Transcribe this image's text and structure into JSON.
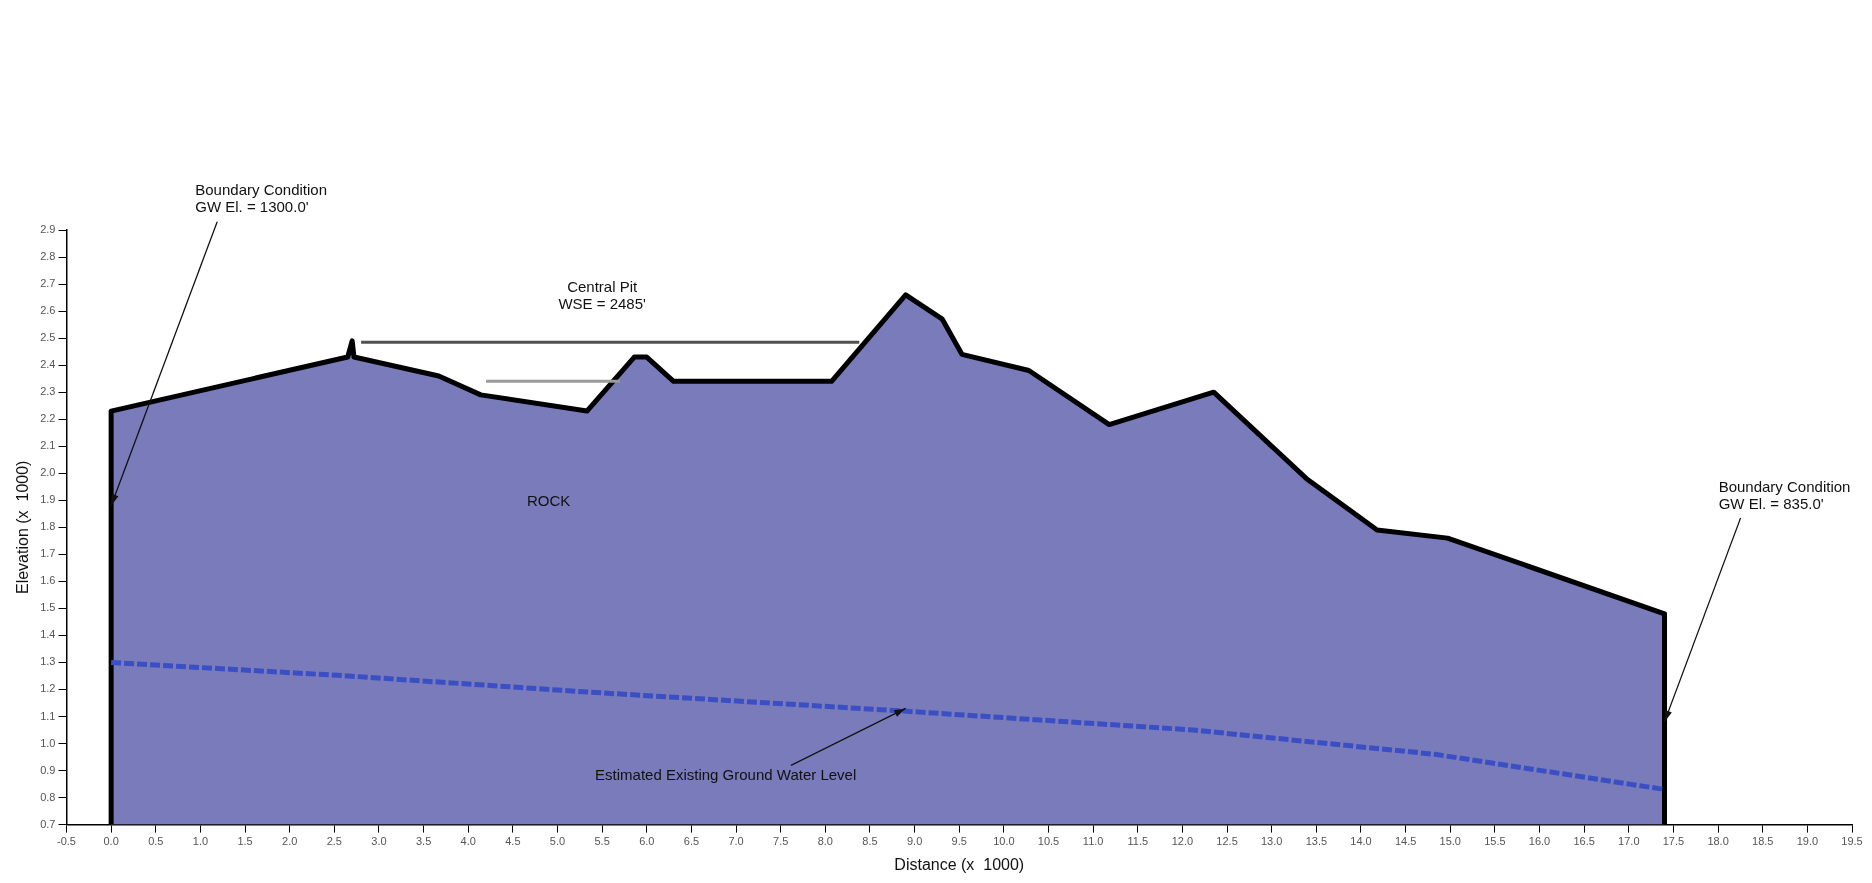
{
  "chart_data": {
    "type": "area",
    "xlabel": "Distance (x  1000)",
    "ylabel": "Elevation (x  1000)",
    "xlim": [
      -0.5,
      19.5
    ],
    "xticks": [
      -0.5,
      {
        "value": 0,
        "label": "0.0"
      },
      0.5,
      {
        "value": 1,
        "label": "1.0"
      },
      1.5,
      {
        "value": 2,
        "label": "2.0"
      },
      2.5,
      {
        "value": 3,
        "label": "3.0"
      },
      3.5,
      {
        "value": 4,
        "label": "4.0"
      },
      4.5,
      {
        "value": 5,
        "label": "5.0"
      },
      5.5,
      {
        "value": 6,
        "label": "6.0"
      },
      6.5,
      {
        "value": 7,
        "label": "7.0"
      },
      7.5,
      {
        "value": 8,
        "label": "8.0"
      },
      8.5,
      {
        "value": 9,
        "label": "9.0"
      },
      9.5,
      {
        "value": 10,
        "label": "10.0"
      },
      10.5,
      {
        "value": 11,
        "label": "11.0"
      },
      11.5,
      {
        "value": 12,
        "label": "12.0"
      },
      12.5,
      {
        "value": 13,
        "label": "13.0"
      },
      13.5,
      {
        "value": 14,
        "label": "14.0"
      },
      14.5,
      {
        "value": 15,
        "label": "15.0"
      },
      15.5,
      {
        "value": 16,
        "label": "16.0"
      },
      16.5,
      {
        "value": 17,
        "label": "17.0"
      },
      17.5,
      {
        "value": 18,
        "label": "18.0"
      },
      18.5,
      {
        "value": 19,
        "label": "19.0"
      },
      19.5
    ],
    "ylim": [
      0.7,
      2.9
    ],
    "yticks": [
      0.7,
      0.8,
      0.9,
      {
        "value": 1,
        "label": "1.0"
      },
      1.1,
      1.2,
      1.3,
      1.4,
      1.5,
      1.6,
      1.7,
      1.8,
      1.9,
      {
        "value": 2,
        "label": "2.0"
      },
      2.1,
      2.2,
      2.3,
      2.4,
      2.5,
      2.6,
      2.7,
      2.8,
      2.9
    ],
    "grid": false,
    "legend": false,
    "series": [
      {
        "type": "area",
        "color": "#7a7bbb",
        "x": [
          0,
          0,
          2.65,
          2.7,
          2.72,
          3.67,
          4.14,
          5.33,
          5.86,
          6.0,
          6.3,
          8.07,
          8.9,
          9.31,
          9.53,
          10.28,
          11.18,
          12.35,
          13.39,
          14.18,
          14.97,
          17.4,
          17.4
        ],
        "values": [
          0.7,
          2.23,
          2.43,
          2.49,
          2.43,
          2.36,
          2.29,
          2.23,
          2.43,
          2.43,
          2.34,
          2.34,
          2.66,
          2.57,
          2.44,
          2.38,
          2.18,
          2.3,
          1.98,
          1.79,
          1.76,
          1.48,
          0.7
        ]
      },
      {
        "type": "line",
        "color": "#505050",
        "x": [
          2.8,
          5.5,
          8.38
        ],
        "values": [
          2.485,
          2.485,
          2.485
        ]
      },
      {
        "type": "line",
        "color": "#9a9a9a",
        "x": [
          4.2,
          5.7
        ],
        "values": [
          2.34,
          2.34
        ]
      },
      {
        "type": "line",
        "color": "#3b4fc4",
        "line_style": "dashed",
        "x": [
          0,
          2.65,
          5.36,
          8.88,
          12.12,
          14.83,
          17.4
        ],
        "values": [
          1.3,
          1.25,
          1.19,
          1.12,
          1.05,
          0.96,
          0.83
        ]
      }
    ],
    "annotations": [
      {
        "text": "Boundary Condition\nGW El. = 1300.0'",
        "x": 0,
        "y": 1.88
      },
      {
        "text": "Central Pit\nWSE = 2485'",
        "x": 5.5,
        "y": 2.485
      },
      "ROCK",
      {
        "text": "Estimated Existing Ground Water Level",
        "x": 8.9,
        "y": 1.13
      },
      {
        "text": "Boundary Condition\nGW El. = 835.0'",
        "x": 17.4,
        "y": 1.08
      }
    ]
  }
}
